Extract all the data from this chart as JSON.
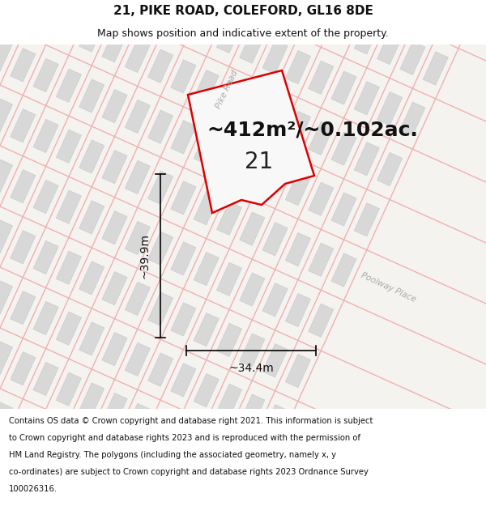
{
  "title_line1": "21, PIKE ROAD, COLEFORD, GL16 8DE",
  "title_line2": "Map shows position and indicative extent of the property.",
  "area_text": "~412m²/~0.102ac.",
  "label_number": "21",
  "dim_width": "~34.4m",
  "dim_height": "~39.9m",
  "footer_lines": [
    "Contains OS data © Crown copyright and database right 2021. This information is subject",
    "to Crown copyright and database rights 2023 and is reproduced with the permission of",
    "HM Land Registry. The polygons (including the associated geometry, namely x, y",
    "co-ordinates) are subject to Crown copyright and database rights 2023 Ordnance Survey",
    "100026316."
  ],
  "road_label_pike": "Pike Road",
  "road_label_poolway": "Poolway Place",
  "road_line_color": "#f0b0b0",
  "plot_edge_color": "#dd0000",
  "plot_fill_color": "#f8f8f8",
  "building_fill": "#d8d8d8",
  "building_edge": "#cccccc",
  "map_bg": "#f5f3f0",
  "title1_fontsize": 11,
  "title2_fontsize": 9,
  "area_fontsize": 18,
  "label_fontsize": 20,
  "dim_fontsize": 10,
  "footer_fontsize": 7.2
}
